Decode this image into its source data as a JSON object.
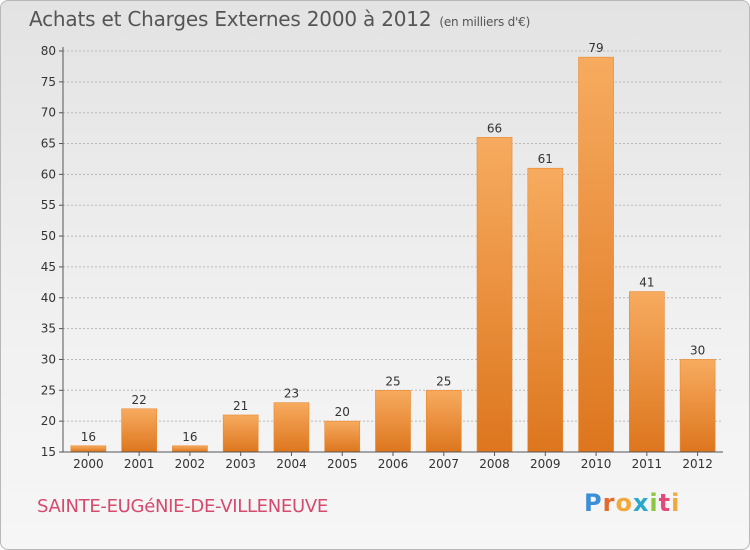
{
  "title": "Achats et Charges Externes 2000 à 2012",
  "subtitle": "(en milliers d'€)",
  "commune": "SAINTE-EUGéNIE-DE-VILLENEUVE",
  "logo": {
    "text": "Proxiti",
    "letters": [
      "P",
      "r",
      "o",
      "x",
      "i",
      "t",
      "i"
    ]
  },
  "colors": {
    "bar_light": "#f6a85a",
    "bar_dark": "#e07820",
    "commune": "#d64a6e"
  },
  "chart_data": {
    "type": "bar",
    "categories": [
      "2000",
      "2001",
      "2002",
      "2003",
      "2004",
      "2005",
      "2006",
      "2007",
      "2008",
      "2009",
      "2010",
      "2011",
      "2012"
    ],
    "values": [
      16,
      22,
      16,
      21,
      23,
      20,
      25,
      25,
      66,
      61,
      79,
      41,
      30
    ],
    "ylim": [
      15,
      80
    ],
    "yticks": [
      15,
      20,
      25,
      30,
      35,
      40,
      45,
      50,
      55,
      60,
      65,
      70,
      75,
      80
    ],
    "grid": "horizontal-dashed",
    "title": "Achats et Charges Externes 2000 à 2012",
    "xlabel": "",
    "ylabel": ""
  }
}
